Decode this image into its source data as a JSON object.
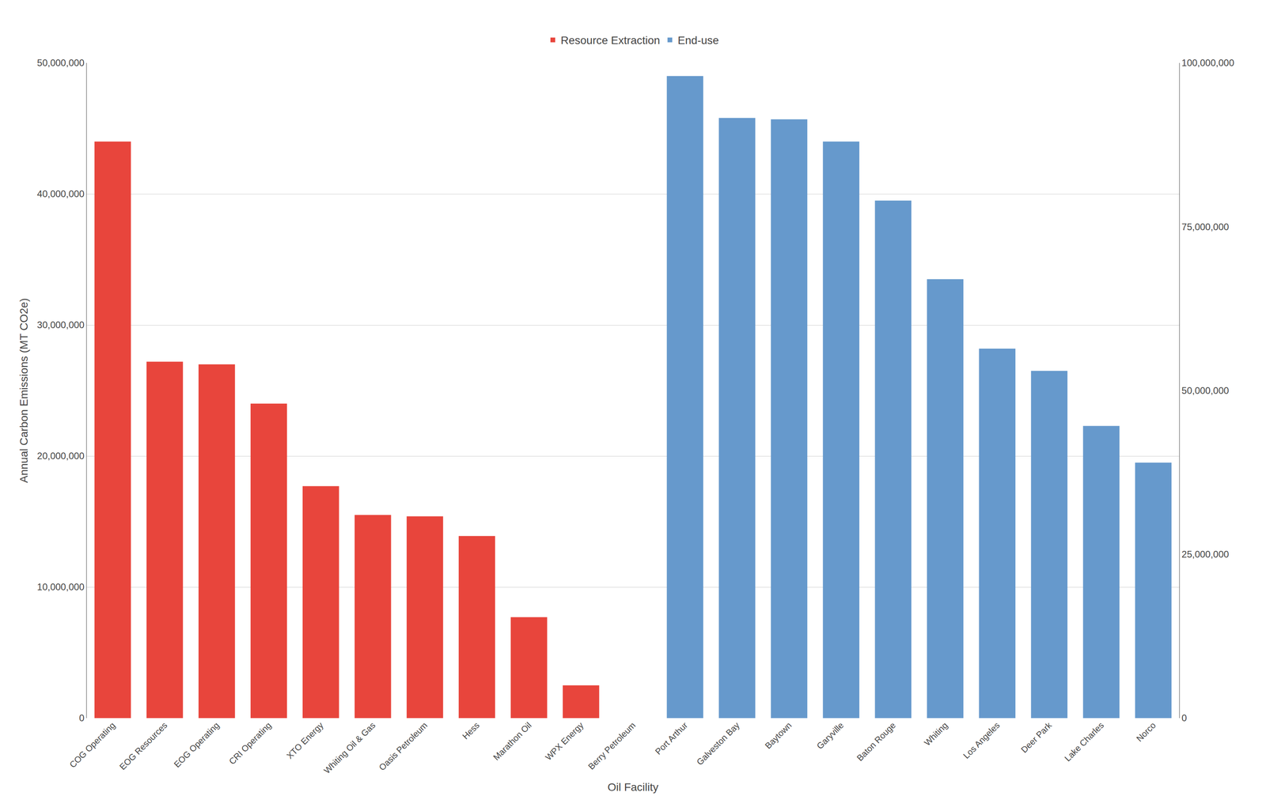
{
  "chart_data": {
    "type": "bar",
    "categories": [
      "COG Operating",
      "EOG Resources",
      "EOG Operating",
      "CRI Operating",
      "XTO Energy",
      "Whiting Oil & Gas",
      "Oasis Petroleum",
      "Hess",
      "Marathon Oil",
      "WPX Energy",
      "Berry Petroleum",
      "Port Arthur",
      "Galveston Bay",
      "Baytown",
      "Garyville",
      "Baton Rouge",
      "Whiting",
      "Los Angeles",
      "Deer Park",
      "Lake Charles",
      "Norco"
    ],
    "series": [
      {
        "name": "Resource Extraction",
        "color": "#E8453C",
        "values": [
          44000000,
          27200000,
          27000000,
          24000000,
          17700000,
          15500000,
          15400000,
          13900000,
          7700000,
          2500000,
          0,
          null,
          null,
          null,
          null,
          null,
          null,
          null,
          null,
          null,
          null
        ]
      },
      {
        "name": "End-use",
        "color": "#6699CC",
        "values": [
          null,
          null,
          null,
          null,
          null,
          null,
          null,
          null,
          null,
          null,
          null,
          49000000,
          45800000,
          45700000,
          44000000,
          39500000,
          33500000,
          28200000,
          26500000,
          22300000,
          19500000
        ]
      }
    ],
    "xlabel": "Oil Facility",
    "ylabel": "Annual Carbon Emissions (MT CO2e)",
    "ylim": [
      0,
      50000000
    ],
    "yticks": [
      0,
      {
        "value": 10000000,
        "label": "10,000,000"
      },
      {
        "value": 20000000,
        "label": "20,000,000"
      },
      {
        "value": 30000000,
        "label": "30,000,000"
      },
      {
        "value": 40000000,
        "label": "40,000,000"
      },
      {
        "value": 50000000,
        "label": "50,000,000"
      }
    ],
    "y2lim": [
      0,
      100000000
    ],
    "y2ticks": [
      0,
      {
        "value": 25000000,
        "label": "25,000,000"
      },
      {
        "value": 50000000,
        "label": "50,000,000"
      },
      {
        "value": 75000000,
        "label": "75,000,000"
      },
      {
        "value": 100000000,
        "label": "100,000,000"
      }
    ],
    "grid": true,
    "legend": "upper center"
  }
}
